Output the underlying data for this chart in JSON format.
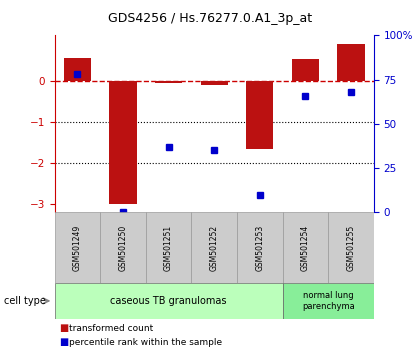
{
  "title": "GDS4256 / Hs.76277.0.A1_3p_at",
  "samples": [
    "GSM501249",
    "GSM501250",
    "GSM501251",
    "GSM501252",
    "GSM501253",
    "GSM501254",
    "GSM501255"
  ],
  "transformed_counts": [
    0.55,
    -3.0,
    -0.05,
    -0.1,
    -1.65,
    0.52,
    0.88
  ],
  "percentile_ranks": [
    78,
    0,
    37,
    35,
    10,
    66,
    68
  ],
  "ylim_left": [
    -3.2,
    1.1
  ],
  "ylim_right": [
    0,
    100
  ],
  "y_ticks_left": [
    0,
    -1,
    -2,
    -3
  ],
  "y_ticks_right": [
    0,
    25,
    50,
    75,
    100
  ],
  "bar_color": "#BB1111",
  "dot_color": "#0000CC",
  "dashed_line_color": "#CC0000",
  "dotted_line_color": "#000000",
  "bg_color": "#FFFFFF",
  "group1_label": "caseous TB granulomas",
  "group1_color": "#BBFFBB",
  "group2_label": "normal lung\nparenchyma",
  "group2_color": "#88EE99",
  "legend_entries": [
    {
      "color": "#BB1111",
      "label": "transformed count"
    },
    {
      "color": "#0000CC",
      "label": "percentile rank within the sample"
    }
  ]
}
